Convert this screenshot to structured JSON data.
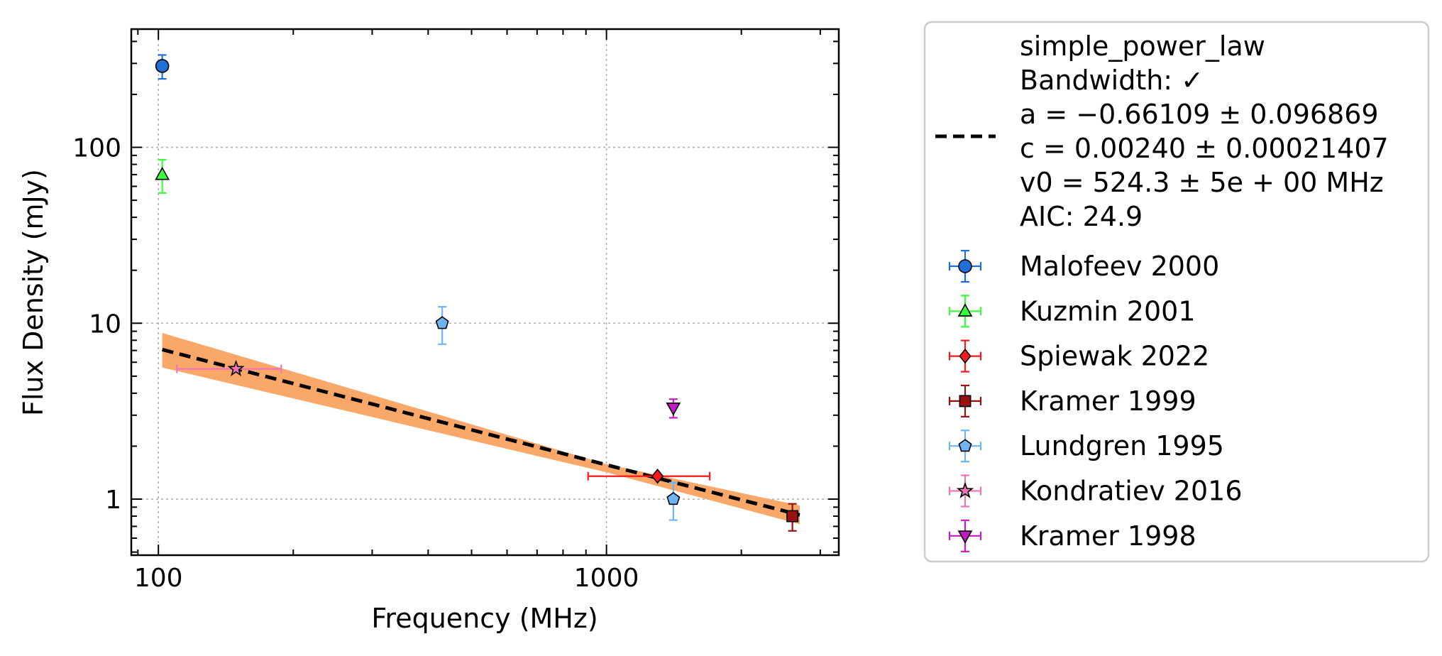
{
  "chart_data": {
    "type": "scatter",
    "x_scale": "log",
    "y_scale": "log",
    "xlabel": "Frequency (MHz)",
    "ylabel": "Flux Density (mJy)",
    "xlim": [
      87,
      3300
    ],
    "ylim": [
      0.48,
      470
    ],
    "x_ticks": [
      {
        "value": 100,
        "label": "100"
      },
      {
        "value": 1000,
        "label": "1000"
      }
    ],
    "y_ticks": [
      {
        "value": 1,
        "label": "1"
      },
      {
        "value": 10,
        "label": "10"
      },
      {
        "value": 100,
        "label": "100"
      }
    ],
    "grid": true,
    "fit": {
      "name": "simple_power_law",
      "legend_lines": [
        "simple_power_law",
        "Bandwidth: ✓",
        "a = −0.66109 ± 0.096869",
        "c = 0.00240 ± 0.00021407",
        "v0 = 524.3 ± 5e + 00 MHz",
        "AIC: 24.9"
      ],
      "a": -0.66109,
      "c": 0.0024,
      "v0": 524.3,
      "x_range": [
        102,
        2700
      ],
      "line_color": "#000000",
      "band_color": "#f9a869",
      "band": [
        {
          "x": 102,
          "low": 5.6,
          "high": 8.8
        },
        {
          "x": 1000,
          "low": 1.42,
          "high": 1.58
        },
        {
          "x": 2700,
          "low": 0.72,
          "high": 0.92
        }
      ]
    },
    "series": [
      {
        "name": "Malofeev 2000",
        "marker": "circle",
        "color": "#1f6fd6",
        "ecolor": "#1f6fd6",
        "points": [
          {
            "x": 102,
            "y": 290,
            "yerr_low": 45,
            "yerr_high": 45
          }
        ]
      },
      {
        "name": "Kuzmin 2001",
        "marker": "triangle-up",
        "color": "#39ff3a",
        "ecolor": "#39ff3a",
        "points": [
          {
            "x": 102,
            "y": 70,
            "yerr_low": 15,
            "yerr_high": 15
          }
        ]
      },
      {
        "name": "Spiewak 2022",
        "marker": "diamond",
        "color": "#ff1a1a",
        "ecolor": "#ff1a1a",
        "points": [
          {
            "x": 1300,
            "y": 1.35,
            "xerr_low": 390,
            "xerr_high": 400
          }
        ]
      },
      {
        "name": "Kramer 1999",
        "marker": "square",
        "color": "#9b1010",
        "ecolor": "#9b1010",
        "points": [
          {
            "x": 2600,
            "y": 0.8,
            "yerr_low": 0.14,
            "yerr_high": 0.14
          }
        ]
      },
      {
        "name": "Lundgren 1995",
        "marker": "pentagon",
        "color": "#6fb4f2",
        "ecolor": "#6fb4f2",
        "points": [
          {
            "x": 430,
            "y": 10,
            "yerr_low": 2.4,
            "yerr_high": 2.4
          },
          {
            "x": 1410,
            "y": 1.0,
            "yerr_low": 0.24,
            "yerr_high": 0.24
          }
        ]
      },
      {
        "name": "Kondratiev 2016",
        "marker": "star",
        "color": "#f472b6",
        "ecolor": "#f472b6",
        "points": [
          {
            "x": 149,
            "y": 5.5,
            "xerr_low": 39,
            "xerr_high": 39
          }
        ]
      },
      {
        "name": "Kramer 1998",
        "marker": "triangle-down",
        "color": "#c41bc4",
        "ecolor": "#c41bc4",
        "points": [
          {
            "x": 1410,
            "y": 3.3,
            "yerr_low": 0.4,
            "yerr_high": 0.4
          }
        ]
      }
    ]
  }
}
